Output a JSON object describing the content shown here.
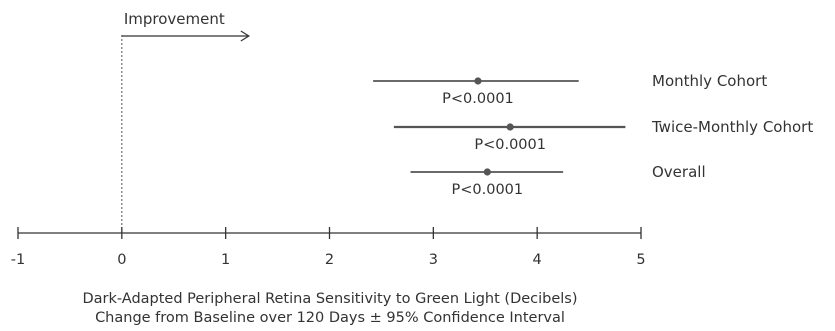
{
  "chart_data": {
    "type": "forest",
    "xlabel_line1": "Dark-Adapted Peripheral Retina Sensitivity to Green Light (Decibels)",
    "xlabel_line2": "Change from Baseline over 120 Days ± 95% Confidence Interval",
    "xlim": [
      -1,
      5
    ],
    "ticks": [
      -1,
      0,
      1,
      2,
      3,
      4,
      5
    ],
    "tick_labels": [
      "-1",
      "0",
      "1",
      "2",
      "3",
      "4",
      "5"
    ],
    "reference_line": 0,
    "direction_label": "Improvement",
    "series": [
      {
        "name": "Monthly Cohort",
        "estimate": 3.43,
        "ci_low": 2.42,
        "ci_high": 4.4,
        "p_label": "P<0.0001"
      },
      {
        "name": "Twice-Monthly Cohort",
        "estimate": 3.74,
        "ci_low": 2.62,
        "ci_high": 4.85,
        "p_label": "P<0.0001"
      },
      {
        "name": "Overall",
        "estimate": 3.52,
        "ci_low": 2.78,
        "ci_high": 4.25,
        "p_label": "P<0.0001"
      }
    ],
    "colors": {
      "line": "#555555",
      "text": "#333333"
    }
  }
}
